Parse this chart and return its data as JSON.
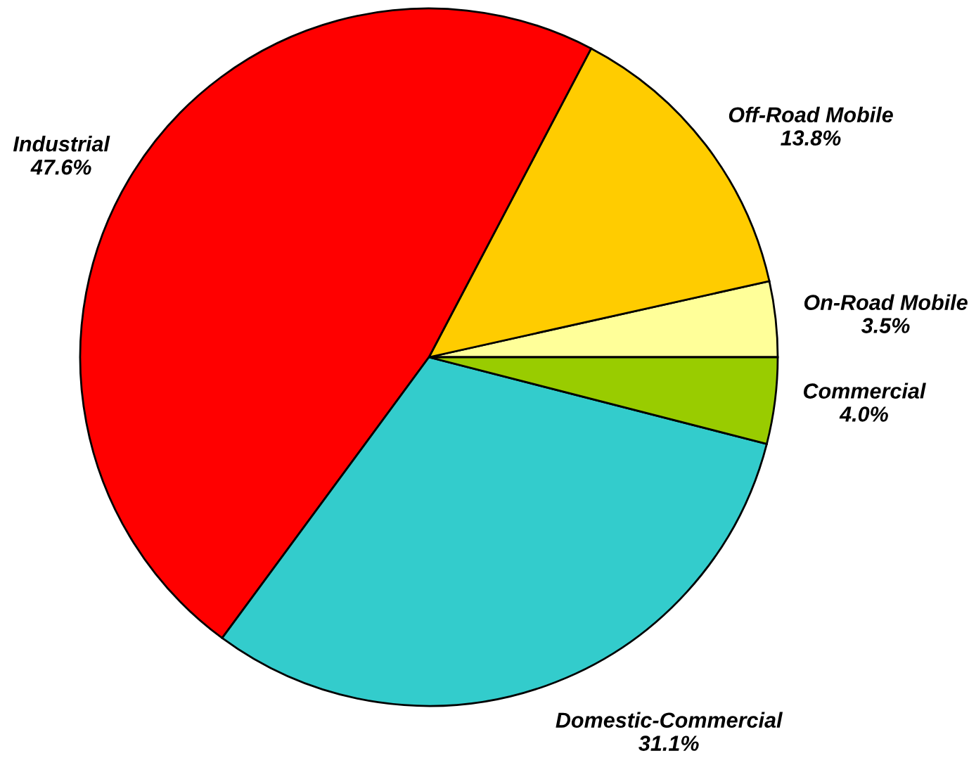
{
  "chart_data": {
    "type": "pie",
    "categories": [
      "On-Road Mobile",
      "Off-Road Mobile",
      "Industrial",
      "Domestic-Commercial",
      "Commercial"
    ],
    "values": [
      3.5,
      13.8,
      47.6,
      31.1,
      4.0
    ],
    "value_labels": [
      "3.5%",
      "13.8%",
      "47.6%",
      "31.1%",
      "4.0%"
    ],
    "colors": [
      "#ffff99",
      "#ffcc00",
      "#ff0000",
      "#33cccc",
      "#99cc00"
    ]
  }
}
